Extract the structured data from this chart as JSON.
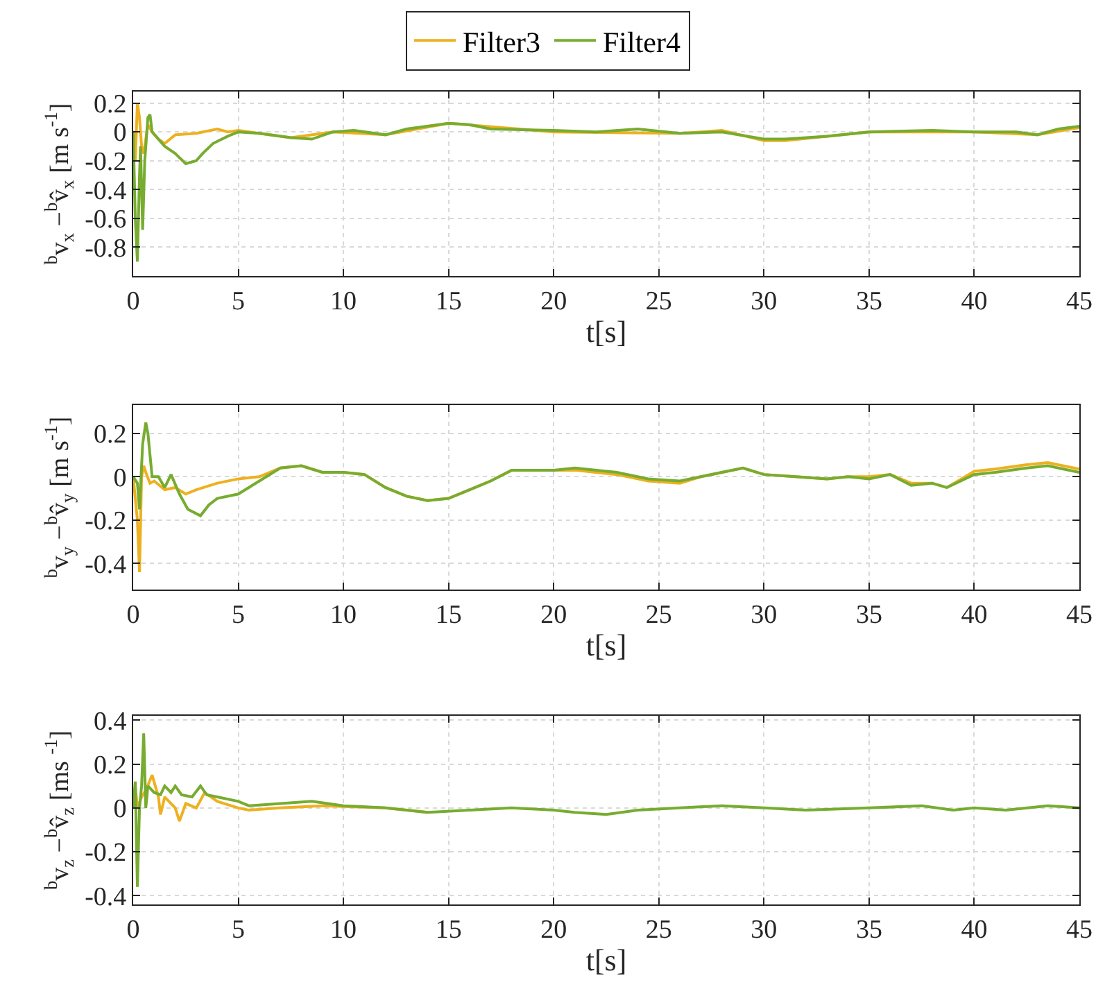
{
  "chart_data": [
    {
      "type": "line",
      "xlabel": "t[s]",
      "ylabel": "$^{b}$v$_{x}$ −$^{b}$v̂$_{x}$ [m s$^{-1}$]",
      "xlim": [
        0,
        45
      ],
      "xticks": [
        0,
        5,
        10,
        15,
        20,
        25,
        30,
        35,
        40,
        45
      ],
      "ylim": [
        -1,
        0.28
      ],
      "yticks": [
        -0.8,
        -0.6,
        -0.4,
        -0.2,
        0,
        0.2
      ],
      "grid": true,
      "legend": "top",
      "line_style": "solid",
      "series": [
        {
          "name": "Filter3",
          "color": "#edb120",
          "x": [
            0,
            0.1,
            0.2,
            0.3,
            0.4,
            0.5,
            0.7,
            0.9,
            1.2,
            1.5,
            2,
            3,
            4,
            4.5,
            5,
            6,
            7.5,
            9.5,
            12,
            15,
            20,
            26,
            28,
            30,
            31,
            33,
            35,
            40,
            43,
            45
          ],
          "values": [
            0,
            -0.2,
            0.2,
            0.1,
            -0.1,
            -0.15,
            0.05,
            0,
            -0.05,
            -0.08,
            -0.02,
            -0.01,
            0.02,
            0,
            0.01,
            -0.01,
            -0.04,
            0,
            -0.02,
            0.06,
            0,
            -0.01,
            0.01,
            -0.06,
            -0.06,
            -0.03,
            0,
            0,
            -0.02,
            0.03
          ]
        },
        {
          "name": "Filter4",
          "color": "#77ac30",
          "x": [
            0,
            0.1,
            0.2,
            0.3,
            0.35,
            0.45,
            0.55,
            0.7,
            0.8,
            0.9,
            1.2,
            1.5,
            2,
            2.5,
            3,
            3.3,
            3.8,
            4.5,
            5,
            6,
            7.5,
            8.5,
            9.5,
            10.5,
            12,
            13,
            15,
            16,
            17,
            20,
            22,
            24,
            26,
            28,
            30,
            31,
            33,
            35,
            38,
            40,
            42,
            43,
            44,
            45
          ],
          "values": [
            0,
            -0.6,
            -0.9,
            -0.3,
            -0.1,
            -0.68,
            -0.2,
            0.1,
            0.12,
            0,
            -0.05,
            -0.1,
            -0.15,
            -0.22,
            -0.2,
            -0.15,
            -0.08,
            -0.03,
            0,
            -0.01,
            -0.04,
            -0.05,
            0,
            0.01,
            -0.02,
            0.02,
            0.06,
            0.05,
            0.02,
            0.01,
            0,
            0.02,
            -0.01,
            0,
            -0.05,
            -0.05,
            -0.03,
            0,
            0.01,
            0,
            0,
            -0.02,
            0.02,
            0.04
          ]
        }
      ]
    },
    {
      "type": "line",
      "xlabel": "t[s]",
      "ylabel": "$^{b}$v$_{y}$ −$^{b}$v̂$_{y}$ [m s$^{-1}$]",
      "xlim": [
        0,
        45
      ],
      "xticks": [
        0,
        5,
        10,
        15,
        20,
        25,
        30,
        35,
        40,
        45
      ],
      "ylim": [
        -0.52,
        0.33
      ],
      "yticks": [
        -0.4,
        -0.2,
        0,
        0.2
      ],
      "grid": true,
      "line_style": "solid",
      "series": [
        {
          "color": "#edb120",
          "x": [
            0,
            0.2,
            0.3,
            0.4,
            0.5,
            0.6,
            0.8,
            1,
            1.5,
            2,
            2.5,
            3,
            4,
            5,
            6,
            7,
            8,
            9,
            10,
            11,
            12,
            13,
            14,
            15,
            16,
            17,
            18,
            20,
            21,
            23,
            24.5,
            26,
            27,
            29,
            30,
            31.5,
            33,
            34,
            35,
            36,
            37,
            38,
            38.7,
            40,
            41,
            42.5,
            43.5,
            45
          ],
          "values": [
            0,
            -0.2,
            -0.44,
            0,
            0.05,
            0.02,
            -0.03,
            -0.02,
            -0.06,
            -0.05,
            -0.08,
            -0.06,
            -0.03,
            -0.01,
            0,
            0.04,
            0.05,
            0.02,
            0.02,
            0.01,
            -0.05,
            -0.09,
            -0.11,
            -0.1,
            -0.06,
            -0.02,
            0.03,
            0.03,
            0.03,
            0.01,
            -0.02,
            -0.03,
            0,
            0.04,
            0.01,
            0,
            -0.01,
            0,
            0,
            0.01,
            -0.03,
            -0.03,
            -0.05,
            0.025,
            0.035,
            0.055,
            0.065,
            0.035
          ]
        },
        {
          "color": "#77ac30",
          "x": [
            0,
            0.2,
            0.3,
            0.45,
            0.6,
            0.7,
            0.8,
            0.9,
            1.2,
            1.5,
            1.8,
            2.2,
            2.6,
            3.2,
            3.6,
            4,
            5,
            6,
            7,
            8,
            9,
            10,
            11,
            12,
            13,
            14,
            15,
            16,
            17,
            18,
            20,
            21,
            23,
            24.5,
            26,
            27,
            29,
            30,
            31.5,
            33,
            34,
            35,
            36,
            37,
            38,
            38.7,
            40,
            41,
            42.5,
            43.5,
            45
          ],
          "values": [
            0,
            -0.03,
            -0.15,
            0.15,
            0.25,
            0.2,
            0.1,
            0,
            0,
            -0.05,
            0.01,
            -0.08,
            -0.15,
            -0.18,
            -0.13,
            -0.1,
            -0.08,
            -0.02,
            0.04,
            0.05,
            0.02,
            0.02,
            0.01,
            -0.05,
            -0.09,
            -0.11,
            -0.1,
            -0.06,
            -0.02,
            0.03,
            0.03,
            0.04,
            0.02,
            -0.01,
            -0.02,
            0,
            0.04,
            0.01,
            0,
            -0.01,
            0,
            -0.01,
            0.01,
            -0.04,
            -0.03,
            -0.05,
            0.01,
            0.02,
            0.04,
            0.05,
            0.02
          ]
        }
      ]
    },
    {
      "type": "line",
      "xlabel": "t[s]",
      "ylabel": "$^{b}$v$_{z}$ −$^{b}$v̂$_{z}$ [ms $^{-1}$]",
      "xlim": [
        0,
        45
      ],
      "xticks": [
        0,
        5,
        10,
        15,
        20,
        25,
        30,
        35,
        40,
        45
      ],
      "ylim": [
        -0.44,
        0.42
      ],
      "yticks": [
        -0.4,
        -0.2,
        0,
        0.2,
        0.4
      ],
      "grid": true,
      "line_style": "solid",
      "series": [
        {
          "color": "#edb120",
          "x": [
            0,
            0.1,
            0.2,
            0.4,
            0.6,
            0.9,
            1.2,
            1.3,
            1.5,
            2,
            2.2,
            2.5,
            3,
            3.4,
            4,
            5,
            5.5,
            7,
            9,
            12,
            14
          ],
          "values": [
            0,
            0.1,
            0,
            0.05,
            0.08,
            0.15,
            0.05,
            -0.03,
            0.05,
            0,
            -0.06,
            0.02,
            0,
            0.07,
            0.03,
            0,
            -0.01,
            0,
            0.01,
            0,
            -0.02
          ]
        },
        {
          "color": "#77ac30",
          "x": [
            0,
            0.1,
            0.2,
            0.3,
            0.4,
            0.5,
            0.6,
            0.7,
            1,
            1.3,
            1.5,
            1.8,
            2,
            2.3,
            2.8,
            3.2,
            3.5,
            4,
            5,
            5.5,
            7,
            8.5,
            10,
            12,
            14,
            16,
            18,
            20,
            21,
            22.5,
            24,
            26,
            28,
            30,
            32,
            35,
            37.5,
            39,
            40,
            41.5,
            43.5,
            45
          ],
          "values": [
            0,
            0.12,
            -0.36,
            0,
            0.1,
            0.34,
            0,
            0.1,
            0.07,
            0.06,
            0.1,
            0.07,
            0.1,
            0.06,
            0.05,
            0.1,
            0.06,
            0.05,
            0.03,
            0.01,
            0.02,
            0.03,
            0.01,
            0,
            -0.02,
            -0.01,
            0,
            -0.01,
            -0.02,
            -0.03,
            -0.01,
            0,
            0.01,
            0,
            -0.01,
            0,
            0.01,
            -0.01,
            0,
            -0.01,
            0.01,
            0
          ]
        }
      ]
    }
  ]
}
